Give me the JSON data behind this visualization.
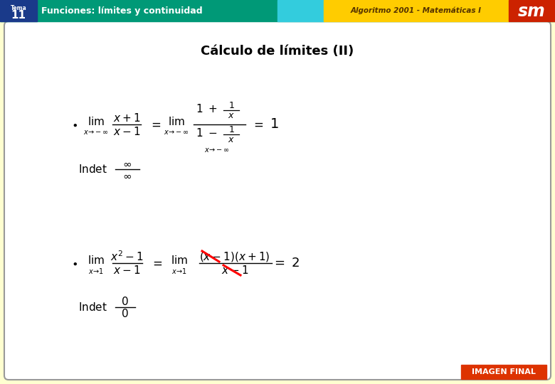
{
  "title": "Cálculo de límites (II)",
  "header_tema_label": "Tema",
  "header_tema_num": "11",
  "header_subject": "Funciones: límites y continuidad",
  "header_algo": "Algoritmo 2001 - Matemáticas I",
  "footer_label": "IMAGEN FINAL",
  "bg_color": "#ffffd0",
  "header_green": "#009977",
  "header_cyan": "#33ccdd",
  "header_yellow": "#ffcc00",
  "header_red": "#cc2200",
  "header_blue": "#1a3a8a",
  "footer_orange": "#dd3300",
  "content_bg": "#ffffff"
}
